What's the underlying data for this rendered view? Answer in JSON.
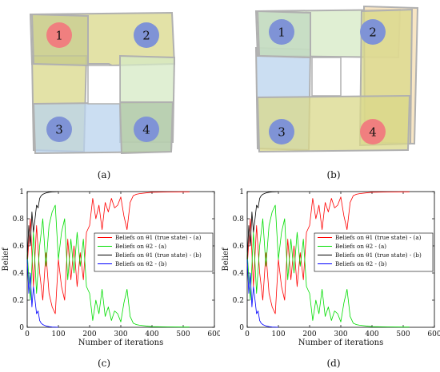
{
  "captions": {
    "a": "(a)",
    "b": "(b)",
    "c": "(c)",
    "d": "(d)"
  },
  "diagram_a": {
    "nodes": [
      "1",
      "2",
      "3",
      "4"
    ],
    "highlighted_node": "1"
  },
  "diagram_b": {
    "nodes": [
      "1",
      "2",
      "3",
      "4"
    ],
    "highlighted_node": "4"
  },
  "colors": {
    "node_blue": "#7f93d6",
    "node_red": "#f07f7f",
    "region_olive": "#d9d88a",
    "region_blue": "#b9d3ee",
    "region_green": "#d5e9c4",
    "region_orange": "#f5deb0",
    "region_border": "#b0b0b0",
    "series_red": "#ff0000",
    "series_green": "#00dd00",
    "series_black": "#000000",
    "series_blue": "#0000ff"
  },
  "chart_data": [
    {
      "id": "c",
      "type": "line",
      "xlabel": "Number of iterations",
      "ylabel": "Belief",
      "xlim": [
        0,
        600
      ],
      "ylim": [
        0,
        1
      ],
      "xticks": [
        "0",
        "100",
        "200",
        "300",
        "400",
        "500",
        "600"
      ],
      "yticks": [
        "0",
        "0.2",
        "0.4",
        "0.6",
        "0.8",
        "1"
      ],
      "legend_position": "center-right",
      "series": [
        {
          "name": "Beliefs on θ1 (true state) - (a)",
          "color": "#ff0000",
          "x": [
            0,
            10,
            20,
            30,
            40,
            50,
            60,
            70,
            80,
            90,
            100,
            110,
            120,
            130,
            140,
            150,
            160,
            170,
            180,
            190,
            200,
            210,
            220,
            230,
            240,
            250,
            260,
            270,
            280,
            290,
            300,
            310,
            320,
            330,
            340,
            350,
            360,
            380,
            400,
            450,
            500,
            520
          ],
          "y": [
            0.45,
            0.8,
            0.3,
            0.75,
            0.4,
            0.2,
            0.55,
            0.25,
            0.15,
            0.1,
            0.5,
            0.3,
            0.2,
            0.65,
            0.35,
            0.6,
            0.3,
            0.55,
            0.35,
            0.7,
            0.75,
            0.95,
            0.8,
            0.9,
            0.72,
            0.92,
            0.85,
            0.95,
            0.88,
            0.9,
            0.96,
            0.82,
            0.72,
            0.92,
            0.97,
            0.98,
            0.985,
            0.99,
            0.995,
            0.997,
            0.998,
            0.998
          ]
        },
        {
          "name": "Beliefs on θ2 - (a)",
          "color": "#00dd00",
          "x": [
            0,
            10,
            20,
            30,
            40,
            50,
            60,
            70,
            80,
            90,
            100,
            110,
            120,
            130,
            140,
            150,
            160,
            170,
            180,
            190,
            200,
            210,
            220,
            230,
            240,
            250,
            260,
            270,
            280,
            290,
            300,
            310,
            320,
            330,
            340,
            350,
            360,
            380,
            400,
            450,
            500,
            520
          ],
          "y": [
            0.55,
            0.2,
            0.7,
            0.25,
            0.6,
            0.8,
            0.45,
            0.75,
            0.85,
            0.9,
            0.5,
            0.7,
            0.8,
            0.35,
            0.65,
            0.4,
            0.7,
            0.45,
            0.65,
            0.3,
            0.25,
            0.05,
            0.2,
            0.1,
            0.28,
            0.08,
            0.15,
            0.05,
            0.12,
            0.1,
            0.04,
            0.18,
            0.28,
            0.08,
            0.03,
            0.02,
            0.015,
            0.01,
            0.005,
            0.003,
            0.002,
            0.002
          ]
        },
        {
          "name": "Beliefs on θ1 (true state) - (b)",
          "color": "#000000",
          "x": [
            0,
            5,
            10,
            15,
            20,
            25,
            30,
            35,
            40,
            45,
            50,
            60,
            70,
            80,
            90,
            100
          ],
          "y": [
            0.5,
            0.75,
            0.6,
            0.85,
            0.7,
            0.8,
            0.9,
            0.88,
            0.95,
            0.97,
            0.98,
            0.99,
            0.995,
            0.998,
            0.999,
            1.0
          ]
        },
        {
          "name": "Beliefs on θ2 - (b)",
          "color": "#0000ff",
          "x": [
            0,
            5,
            10,
            15,
            20,
            25,
            30,
            35,
            40,
            45,
            50,
            60,
            70,
            80,
            90,
            100
          ],
          "y": [
            0.5,
            0.25,
            0.4,
            0.15,
            0.3,
            0.2,
            0.1,
            0.12,
            0.05,
            0.03,
            0.02,
            0.01,
            0.005,
            0.002,
            0.001,
            0.0
          ]
        }
      ]
    },
    {
      "id": "d",
      "type": "line",
      "xlabel": "Number of iterations",
      "ylabel": "Belief",
      "xlim": [
        0,
        600
      ],
      "ylim": [
        0,
        1
      ],
      "xticks": [
        "0",
        "100",
        "200",
        "300",
        "400",
        "500",
        "600"
      ],
      "yticks": [
        "0",
        "0.2",
        "0.4",
        "0.6",
        "0.8",
        "1"
      ],
      "legend_position": "center-right",
      "series": [
        {
          "name": "Beliefs on θ1 (true state) - (a)",
          "color": "#ff0000",
          "x": [
            0,
            10,
            20,
            30,
            40,
            50,
            60,
            70,
            80,
            90,
            100,
            110,
            120,
            130,
            140,
            150,
            160,
            170,
            180,
            190,
            200,
            210,
            220,
            230,
            240,
            250,
            260,
            270,
            280,
            290,
            300,
            310,
            320,
            330,
            340,
            350,
            360,
            380,
            400,
            450,
            500,
            520
          ],
          "y": [
            0.45,
            0.8,
            0.3,
            0.75,
            0.4,
            0.2,
            0.55,
            0.25,
            0.15,
            0.1,
            0.5,
            0.3,
            0.2,
            0.65,
            0.35,
            0.6,
            0.3,
            0.55,
            0.35,
            0.7,
            0.75,
            0.95,
            0.8,
            0.9,
            0.72,
            0.92,
            0.85,
            0.95,
            0.88,
            0.9,
            0.96,
            0.82,
            0.72,
            0.92,
            0.97,
            0.98,
            0.985,
            0.99,
            0.995,
            0.997,
            0.998,
            0.998
          ]
        },
        {
          "name": "Beliefs on θ2 - (a)",
          "color": "#00dd00",
          "x": [
            0,
            10,
            20,
            30,
            40,
            50,
            60,
            70,
            80,
            90,
            100,
            110,
            120,
            130,
            140,
            150,
            160,
            170,
            180,
            190,
            200,
            210,
            220,
            230,
            240,
            250,
            260,
            270,
            280,
            290,
            300,
            310,
            320,
            330,
            340,
            350,
            360,
            380,
            400,
            450,
            500,
            520
          ],
          "y": [
            0.55,
            0.2,
            0.7,
            0.25,
            0.6,
            0.8,
            0.45,
            0.75,
            0.85,
            0.9,
            0.5,
            0.7,
            0.8,
            0.35,
            0.65,
            0.4,
            0.7,
            0.45,
            0.65,
            0.3,
            0.25,
            0.05,
            0.2,
            0.1,
            0.28,
            0.08,
            0.15,
            0.05,
            0.12,
            0.1,
            0.04,
            0.18,
            0.28,
            0.08,
            0.03,
            0.02,
            0.015,
            0.01,
            0.005,
            0.003,
            0.002,
            0.002
          ]
        },
        {
          "name": "Beliefs on θ1 (true state) - (b)",
          "color": "#000000",
          "x": [
            0,
            5,
            10,
            15,
            20,
            25,
            30,
            35,
            40,
            45,
            50,
            60,
            70,
            80,
            90,
            100
          ],
          "y": [
            0.5,
            0.75,
            0.6,
            0.85,
            0.7,
            0.8,
            0.9,
            0.88,
            0.95,
            0.97,
            0.98,
            0.99,
            0.995,
            0.998,
            0.999,
            1.0
          ]
        },
        {
          "name": "Beliefs on θ2 - (b)",
          "color": "#0000ff",
          "x": [
            0,
            5,
            10,
            15,
            20,
            25,
            30,
            35,
            40,
            45,
            50,
            60,
            70,
            80,
            90,
            100
          ],
          "y": [
            0.5,
            0.25,
            0.4,
            0.15,
            0.3,
            0.2,
            0.1,
            0.12,
            0.05,
            0.03,
            0.02,
            0.01,
            0.005,
            0.002,
            0.001,
            0.0
          ]
        }
      ]
    }
  ]
}
